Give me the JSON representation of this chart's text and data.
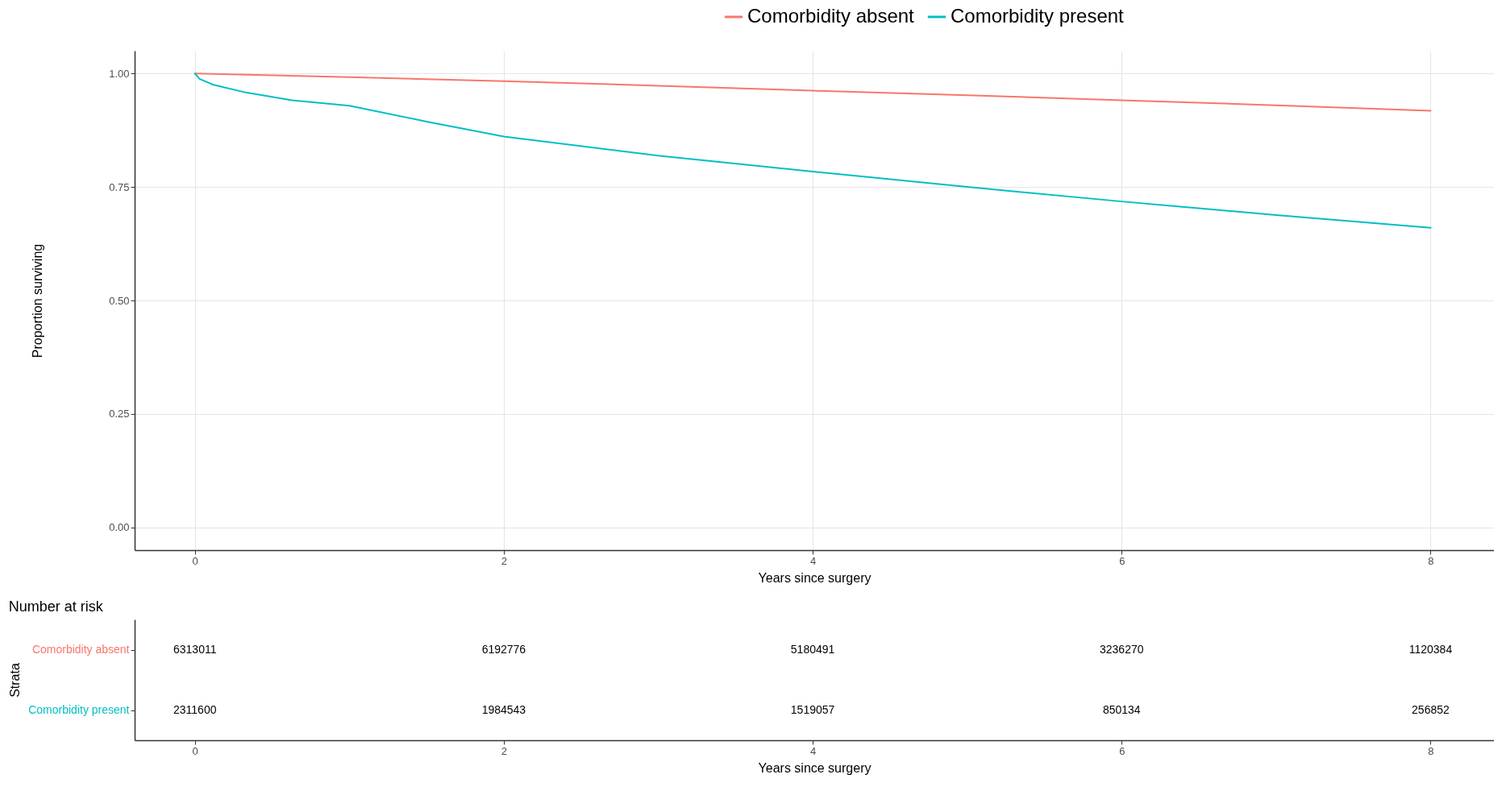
{
  "chart_data": [
    {
      "type": "line",
      "xlabel": "Years since surgery",
      "ylabel": "Proportion surviving",
      "legend": "top",
      "grid": true,
      "marker": "none",
      "line_style": "solid",
      "xlim": [
        -0.39,
        8.41
      ],
      "xticks": [
        0,
        2,
        4,
        6,
        8
      ],
      "ylim": [
        -0.05,
        1.05
      ],
      "yticks": [
        {
          "value": 0,
          "label": "0.00"
        },
        {
          "value": 0.25,
          "label": "0.25"
        },
        {
          "value": 0.5,
          "label": "0.50"
        },
        {
          "value": 0.75,
          "label": "0.75"
        },
        {
          "value": 1,
          "label": "1.00"
        }
      ],
      "series": [
        {
          "name": "Comorbidity absent",
          "color": "#f8766d",
          "x": [
            0,
            1,
            2,
            3,
            4,
            5,
            6,
            7,
            8
          ],
          "values": [
            1,
            0.992,
            0.983,
            0.973,
            0.962,
            0.952,
            0.941,
            0.93,
            0.918
          ]
        },
        {
          "name": "Comorbidity present",
          "color": "#00bfc4",
          "x": [
            0,
            0.03,
            0.12,
            0.33,
            0.63,
            1,
            1.5,
            2,
            3,
            4,
            5,
            6,
            7,
            8
          ],
          "values": [
            1,
            0.988,
            0.975,
            0.958,
            0.941,
            0.929,
            0.894,
            0.861,
            0.819,
            0.784,
            0.75,
            0.718,
            0.688,
            0.66
          ]
        }
      ]
    },
    {
      "type": "heatmap",
      "title": "Number at risk",
      "xlabel": "Years since surgery",
      "ylabel": "Strata",
      "x": [
        0,
        2,
        4,
        6,
        8
      ],
      "xlim": [
        -0.39,
        8.41
      ],
      "xticks": [
        0,
        2,
        4,
        6,
        8
      ],
      "y_categories": [
        "Comorbidity absent",
        "Comorbidity present"
      ],
      "data_labels": true,
      "cells": [
        [
          6313011,
          6192776,
          5180491,
          3236270,
          1120384
        ],
        [
          2311600,
          1984543,
          1519057,
          850134,
          256852
        ]
      ]
    }
  ]
}
